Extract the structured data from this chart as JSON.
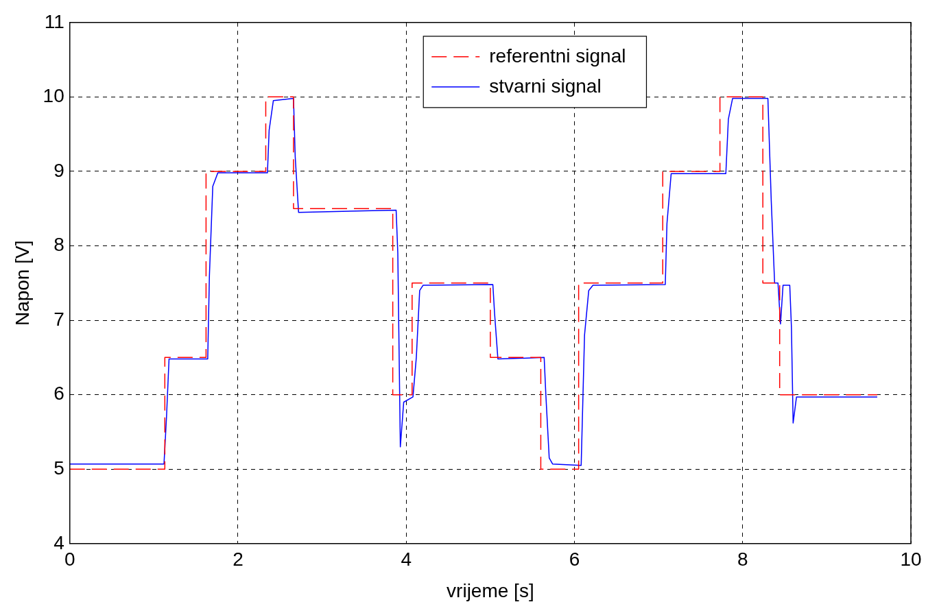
{
  "chart_data": {
    "type": "line",
    "xlabel": "vrijeme [s]",
    "ylabel": "Napon [V]",
    "xlim": [
      0,
      10
    ],
    "ylim": [
      4,
      11
    ],
    "xticks": [
      0,
      2,
      4,
      6,
      8,
      10
    ],
    "yticks": [
      4,
      5,
      6,
      7,
      8,
      9,
      10,
      11
    ],
    "grid": true,
    "legend": "top",
    "series": [
      {
        "name": "referentni signal",
        "type": "step",
        "color": "#ff0000",
        "line_style": "dashed",
        "x": [
          0,
          1.13,
          1.62,
          2.33,
          2.66,
          3.84,
          4.07,
          5.0,
          5.6,
          6.05,
          7.05,
          7.73,
          8.24,
          8.44,
          9.6
        ],
        "values": [
          5,
          6.5,
          9,
          10,
          8.5,
          6,
          7.5,
          6.5,
          5,
          7.5,
          9,
          10,
          7.5,
          6,
          6
        ]
      },
      {
        "name": "stvarni signal",
        "type": "line",
        "color": "#0000ff",
        "line_style": "solid",
        "x": [
          0,
          1.12,
          1.15,
          1.18,
          1.64,
          1.66,
          1.7,
          1.76,
          2.35,
          2.37,
          2.42,
          2.66,
          2.68,
          2.72,
          3.88,
          3.9,
          3.93,
          3.97,
          4.08,
          4.12,
          4.16,
          4.2,
          5.03,
          5.05,
          5.09,
          5.64,
          5.66,
          5.7,
          5.74,
          6.08,
          6.12,
          6.17,
          6.22,
          7.08,
          7.1,
          7.15,
          7.8,
          7.83,
          7.88,
          8.3,
          8.34,
          8.38,
          8.42,
          8.45,
          8.48,
          8.56,
          8.58,
          8.6,
          8.64,
          9.6
        ],
        "values": [
          5.07,
          5.07,
          5.7,
          6.48,
          6.48,
          7.6,
          8.8,
          8.98,
          8.98,
          9.55,
          9.95,
          9.98,
          9.2,
          8.45,
          8.48,
          7.9,
          5.3,
          5.9,
          5.97,
          6.5,
          7.4,
          7.47,
          7.48,
          7.1,
          6.48,
          6.5,
          6.0,
          5.15,
          5.07,
          5.05,
          6.8,
          7.4,
          7.47,
          7.48,
          8.3,
          8.97,
          8.97,
          9.7,
          9.98,
          9.98,
          8.6,
          7.5,
          7.5,
          6.95,
          7.47,
          7.47,
          6.9,
          5.62,
          5.97,
          5.97
        ]
      }
    ]
  }
}
